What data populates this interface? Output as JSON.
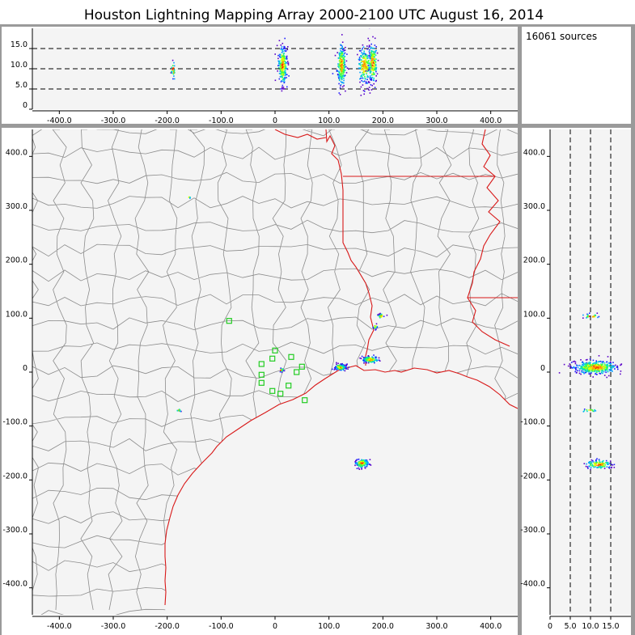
{
  "title": "Houston Lightning Mapping Array   2000-2100 UTC  August 16, 2014",
  "source_count_label": "16061 sources",
  "colors": {
    "panel_bg": "#f4f4f4",
    "frame": "#9a9a9a",
    "county": "#8c8c8c",
    "state": "#d81818",
    "coast": "#d81818",
    "station": "#22cc22",
    "colormap": [
      "#5a00c8",
      "#2020ff",
      "#00a0ff",
      "#00e0c0",
      "#40ff40",
      "#e0ff00",
      "#ffa000",
      "#ff2000"
    ]
  },
  "chart_data": [
    {
      "type": "scatter",
      "panel": "east-west vs altitude",
      "x_ticks": [
        "-400.0",
        "-300.0",
        "-200.0",
        "-100.0",
        "0",
        "100.0",
        "200.0",
        "300.0",
        "400.0"
      ],
      "y_ticks": [
        "0",
        "5.0",
        "10.0",
        "15.0"
      ],
      "xlim": [
        -450,
        450
      ],
      "ylim": [
        0,
        20
      ],
      "dashed_levels": [
        5,
        10,
        15
      ],
      "clusters": [
        {
          "x": -190,
          "y": 9.8,
          "sx": 2,
          "sy": 1.2,
          "n": 25
        },
        {
          "x": 13,
          "y": 11,
          "sx": 4,
          "sy": 2.4,
          "n": 260
        },
        {
          "x": 122,
          "y": 11,
          "sx": 4,
          "sy": 2.4,
          "n": 260
        },
        {
          "x": 165,
          "y": 11,
          "sx": 6,
          "sy": 2.2,
          "n": 200
        },
        {
          "x": 180,
          "y": 11.5,
          "sx": 4,
          "sy": 2.5,
          "n": 180
        }
      ]
    },
    {
      "type": "scatter",
      "panel": "plan view map",
      "x_ticks": [
        "-400.0",
        "-300.0",
        "-200.0",
        "-100.0",
        "0",
        "100.0",
        "200.0",
        "300.0",
        "400.0"
      ],
      "y_ticks": [
        "400.0",
        "300.0",
        "200.0",
        "100.0",
        "0",
        "-100.0",
        "-200.0",
        "-300.0",
        "-400.0"
      ],
      "xlim": [
        -450,
        450
      ],
      "ylim": [
        -450,
        450
      ],
      "clusters": [
        {
          "x": 120,
          "y": 10,
          "sx": 5,
          "sy": 3,
          "n": 160
        },
        {
          "x": 175,
          "y": 24,
          "sx": 7,
          "sy": 3,
          "n": 160
        },
        {
          "x": 160,
          "y": -168,
          "sx": 6,
          "sy": 4,
          "n": 160
        },
        {
          "x": 195,
          "y": 105,
          "sx": 3,
          "sy": 2,
          "n": 30
        },
        {
          "x": 185,
          "y": 85,
          "sx": 2,
          "sy": 2,
          "n": 15
        },
        {
          "x": 10,
          "y": 5,
          "sx": 3,
          "sy": 2,
          "n": 20
        },
        {
          "x": -180,
          "y": -70,
          "sx": 2,
          "sy": 2,
          "n": 10
        },
        {
          "x": -160,
          "y": 325,
          "sx": 1,
          "sy": 1,
          "n": 4
        }
      ],
      "stations": [
        [
          -85,
          95
        ],
        [
          0,
          40
        ],
        [
          -5,
          25
        ],
        [
          30,
          28
        ],
        [
          -25,
          15
        ],
        [
          50,
          10
        ],
        [
          -25,
          -5
        ],
        [
          40,
          0
        ],
        [
          -25,
          -20
        ],
        [
          25,
          -25
        ],
        [
          -5,
          -35
        ],
        [
          10,
          -40
        ],
        [
          55,
          -52
        ]
      ]
    },
    {
      "type": "scatter",
      "panel": "altitude vs north-south",
      "x_ticks": [
        "0",
        "5.0",
        "10.0",
        "15.0"
      ],
      "y_ticks": [
        "400.0",
        "300.0",
        "200.0",
        "100.0",
        "0",
        "-100.0",
        "-200.0",
        "-300.0",
        "-400.0"
      ],
      "xlim": [
        0,
        20
      ],
      "ylim": [
        -450,
        450
      ],
      "dashed_levels": [
        5,
        10,
        15
      ],
      "clusters": [
        {
          "x": 11,
          "y": 10,
          "sx": 2.6,
          "sy": 6,
          "n": 420
        },
        {
          "x": 12,
          "y": -170,
          "sx": 1.6,
          "sy": 4,
          "n": 130
        },
        {
          "x": 10,
          "y": 105,
          "sx": 1.2,
          "sy": 2,
          "n": 25
        },
        {
          "x": 9.5,
          "y": -70,
          "sx": 1,
          "sy": 1.5,
          "n": 15
        }
      ]
    }
  ]
}
